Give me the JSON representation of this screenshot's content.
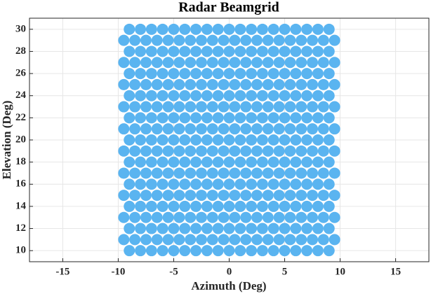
{
  "chart_data": {
    "type": "scatter",
    "title": "Radar Beamgrid",
    "xlabel": "Azimuth (Deg)",
    "ylabel": "Elevation (Deg)",
    "color": "#5ab4f0",
    "grid": true,
    "xlim": [
      -18,
      18
    ],
    "xticks": [
      -15,
      -10,
      -5,
      0,
      5,
      10,
      15
    ],
    "ylim": [
      9,
      31
    ],
    "yticks": [
      10,
      12,
      14,
      16,
      18,
      20,
      22,
      24,
      26,
      28,
      30
    ],
    "series": [
      {
        "y": 10,
        "x": [
          -9,
          -8,
          -7,
          -6,
          -5,
          -4,
          -3,
          -2,
          -1,
          0,
          1,
          2,
          3,
          4,
          5,
          6,
          7,
          8,
          9
        ]
      },
      {
        "y": 11,
        "x": [
          -9.5,
          -8.5,
          -7.5,
          -6.5,
          -5.5,
          -4.5,
          -3.5,
          -2.5,
          -1.5,
          -0.5,
          0.5,
          1.5,
          2.5,
          3.5,
          4.5,
          5.5,
          6.5,
          7.5,
          8.5,
          9.5
        ]
      },
      {
        "y": 12,
        "x": [
          -9,
          -8,
          -7,
          -6,
          -5,
          -4,
          -3,
          -2,
          -1,
          0,
          1,
          2,
          3,
          4,
          5,
          6,
          7,
          8,
          9
        ]
      },
      {
        "y": 13,
        "x": [
          -9.5,
          -8.5,
          -7.5,
          -6.5,
          -5.5,
          -4.5,
          -3.5,
          -2.5,
          -1.5,
          -0.5,
          0.5,
          1.5,
          2.5,
          3.5,
          4.5,
          5.5,
          6.5,
          7.5,
          8.5,
          9.5
        ]
      },
      {
        "y": 14,
        "x": [
          -9,
          -8,
          -7,
          -6,
          -5,
          -4,
          -3,
          -2,
          -1,
          0,
          1,
          2,
          3,
          4,
          5,
          6,
          7,
          8,
          9
        ]
      },
      {
        "y": 15,
        "x": [
          -9.5,
          -8.5,
          -7.5,
          -6.5,
          -5.5,
          -4.5,
          -3.5,
          -2.5,
          -1.5,
          -0.5,
          0.5,
          1.5,
          2.5,
          3.5,
          4.5,
          5.5,
          6.5,
          7.5,
          8.5,
          9.5
        ]
      },
      {
        "y": 16,
        "x": [
          -9,
          -8,
          -7,
          -6,
          -5,
          -4,
          -3,
          -2,
          -1,
          0,
          1,
          2,
          3,
          4,
          5,
          6,
          7,
          8,
          9
        ]
      },
      {
        "y": 17,
        "x": [
          -9.5,
          -8.5,
          -7.5,
          -6.5,
          -5.5,
          -4.5,
          -3.5,
          -2.5,
          -1.5,
          -0.5,
          0.5,
          1.5,
          2.5,
          3.5,
          4.5,
          5.5,
          6.5,
          7.5,
          8.5,
          9.5
        ]
      },
      {
        "y": 18,
        "x": [
          -9,
          -8,
          -7,
          -6,
          -5,
          -4,
          -3,
          -2,
          -1,
          0,
          1,
          2,
          3,
          4,
          5,
          6,
          7,
          8,
          9
        ]
      },
      {
        "y": 19,
        "x": [
          -9.5,
          -8.5,
          -7.5,
          -6.5,
          -5.5,
          -4.5,
          -3.5,
          -2.5,
          -1.5,
          -0.5,
          0.5,
          1.5,
          2.5,
          3.5,
          4.5,
          5.5,
          6.5,
          7.5,
          8.5,
          9.5
        ]
      },
      {
        "y": 20,
        "x": [
          -9,
          -8,
          -7,
          -6,
          -5,
          -4,
          -3,
          -2,
          -1,
          0,
          1,
          2,
          3,
          4,
          5,
          6,
          7,
          8,
          9
        ]
      },
      {
        "y": 21,
        "x": [
          -9.5,
          -8.5,
          -7.5,
          -6.5,
          -5.5,
          -4.5,
          -3.5,
          -2.5,
          -1.5,
          -0.5,
          0.5,
          1.5,
          2.5,
          3.5,
          4.5,
          5.5,
          6.5,
          7.5,
          8.5,
          9.5
        ]
      },
      {
        "y": 22,
        "x": [
          -9,
          -8,
          -7,
          -6,
          -5,
          -4,
          -3,
          -2,
          -1,
          0,
          1,
          2,
          3,
          4,
          5,
          6,
          7,
          8,
          9
        ]
      },
      {
        "y": 23,
        "x": [
          -9.5,
          -8.5,
          -7.5,
          -6.5,
          -5.5,
          -4.5,
          -3.5,
          -2.5,
          -1.5,
          -0.5,
          0.5,
          1.5,
          2.5,
          3.5,
          4.5,
          5.5,
          6.5,
          7.5,
          8.5,
          9.5
        ]
      },
      {
        "y": 24,
        "x": [
          -9,
          -8,
          -7,
          -6,
          -5,
          -4,
          -3,
          -2,
          -1,
          0,
          1,
          2,
          3,
          4,
          5,
          6,
          7,
          8,
          9
        ]
      },
      {
        "y": 25,
        "x": [
          -9.5,
          -8.5,
          -7.5,
          -6.5,
          -5.5,
          -4.5,
          -3.5,
          -2.5,
          -1.5,
          -0.5,
          0.5,
          1.5,
          2.5,
          3.5,
          4.5,
          5.5,
          6.5,
          7.5,
          8.5,
          9.5
        ]
      },
      {
        "y": 26,
        "x": [
          -9,
          -8,
          -7,
          -6,
          -5,
          -4,
          -3,
          -2,
          -1,
          0,
          1,
          2,
          3,
          4,
          5,
          6,
          7,
          8,
          9
        ]
      },
      {
        "y": 27,
        "x": [
          -9.5,
          -8.5,
          -7.5,
          -6.5,
          -5.5,
          -4.5,
          -3.5,
          -2.5,
          -1.5,
          -0.5,
          0.5,
          1.5,
          2.5,
          3.5,
          4.5,
          5.5,
          6.5,
          7.5,
          8.5,
          9.5
        ]
      },
      {
        "y": 28,
        "x": [
          -9,
          -8,
          -7,
          -6,
          -5,
          -4,
          -3,
          -2,
          -1,
          0,
          1,
          2,
          3,
          4,
          5,
          6,
          7,
          8,
          9
        ]
      },
      {
        "y": 29,
        "x": [
          -9.5,
          -8.5,
          -7.5,
          -6.5,
          -5.5,
          -4.5,
          -3.5,
          -2.5,
          -1.5,
          -0.5,
          0.5,
          1.5,
          2.5,
          3.5,
          4.5,
          5.5,
          6.5,
          7.5,
          8.5,
          9.5
        ]
      },
      {
        "y": 30,
        "x": [
          -9,
          -8,
          -7,
          -6,
          -5,
          -4,
          -3,
          -2,
          -1,
          0,
          1,
          2,
          3,
          4,
          5,
          6,
          7,
          8,
          9
        ]
      }
    ]
  }
}
